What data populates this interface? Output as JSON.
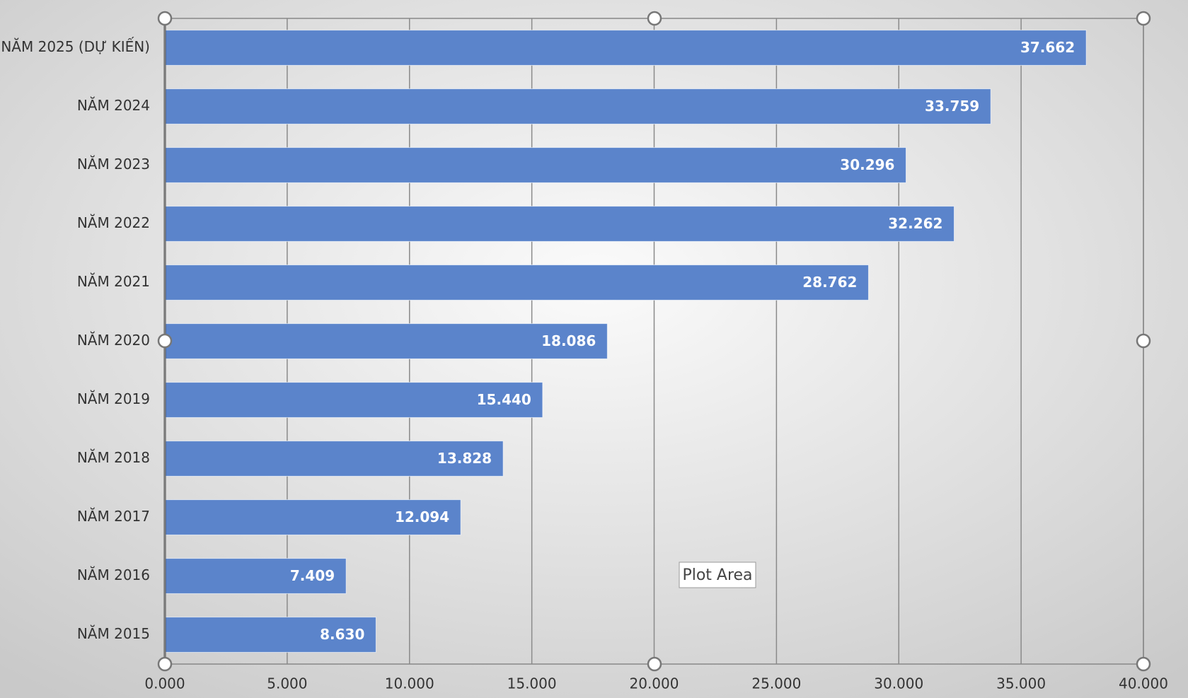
{
  "chart_data": {
    "type": "hbar",
    "categories": [
      "NĂM 2025 (DỰ KIẾN)",
      "NĂM 2024",
      "NĂM 2023",
      "NĂM 2022",
      "NĂM 2021",
      "NĂM 2020",
      "NĂM 2019",
      "NĂM 2018",
      "NĂM 2017",
      "NĂM 2016",
      "NĂM 2015"
    ],
    "values": [
      37.662,
      33.759,
      30.296,
      32.262,
      28.762,
      18.086,
      15.44,
      13.828,
      12.094,
      7.409,
      8.63
    ],
    "value_labels": [
      "37.662",
      "33.759",
      "30.296",
      "32.262",
      "28.762",
      "18.086",
      "15.440",
      "13.828",
      "12.094",
      "7.409",
      "8.630"
    ],
    "color": "#5b84cb",
    "xlim": [
      0,
      40
    ],
    "xticks": [
      {
        "value": 0,
        "label": "0.000"
      },
      {
        "value": 5,
        "label": "5.000"
      },
      {
        "value": 10,
        "label": "10.000"
      },
      {
        "value": 15,
        "label": "15.000"
      },
      {
        "value": 20,
        "label": "20.000"
      },
      {
        "value": 25,
        "label": "25.000"
      },
      {
        "value": 30,
        "label": "30.000"
      },
      {
        "value": 35,
        "label": "35.000"
      },
      {
        "value": 40,
        "label": "40.000"
      }
    ],
    "grid": true
  },
  "tooltip": "Plot Area"
}
